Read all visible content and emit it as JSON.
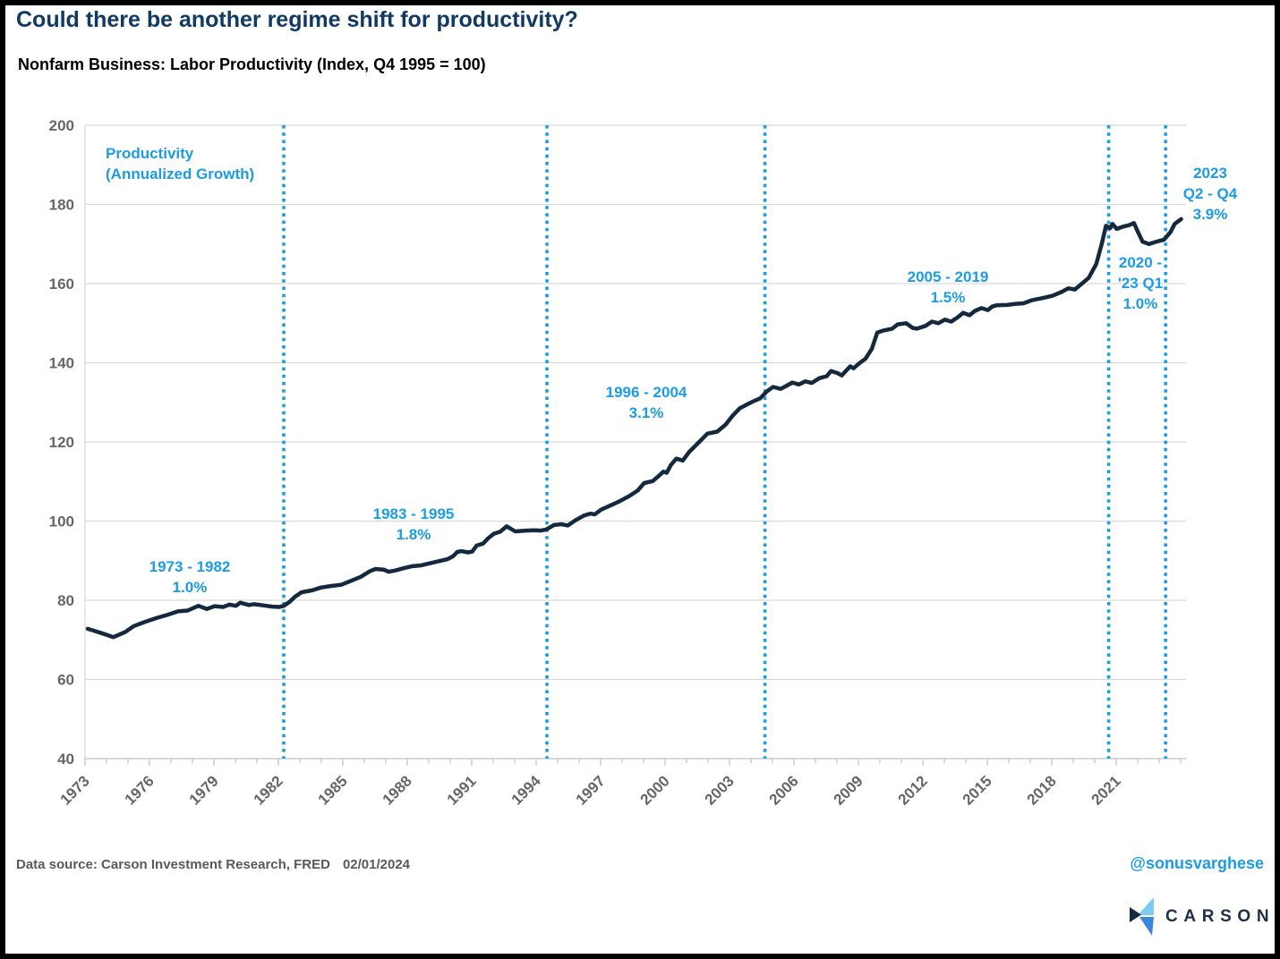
{
  "header": {
    "title": "Could there be another regime shift for productivity?",
    "subtitle": "Nonfarm Business: Labor Productivity (Index, Q4 1995 = 100)"
  },
  "annotations": {
    "legend": {
      "line1": "Productivity",
      "line2": "(Annualized Growth)"
    },
    "r1": {
      "line1": "1973 - 1982",
      "line2": "1.0%"
    },
    "r2": {
      "line1": "1983 - 1995",
      "line2": "1.8%"
    },
    "r3": {
      "line1": "1996 - 2004",
      "line2": "3.1%"
    },
    "r4": {
      "line1": "2005 - 2019",
      "line2": "1.5%"
    },
    "r5": {
      "line1": "2020 -",
      "line2": "'23 Q1",
      "line3": "1.0%"
    },
    "r6": {
      "line1": "2023",
      "line2": "Q2 - Q4",
      "line3": "3.9%"
    }
  },
  "footer": {
    "source": "Data source: Carson Investment Research, FRED",
    "date": "02/01/2024",
    "handle": "@sonusvarghese",
    "logo_text": "CARSON"
  },
  "colors": {
    "line": "#15293e",
    "accent_blue": "#1b9ce4",
    "grid": "#d9d9d9",
    "axis": "#bfbfbf",
    "tick_label": "#666666",
    "logo_light": "#7dcbf2",
    "logo_mid": "#3a87d7",
    "logo_dark": "#16293f"
  },
  "chart_data": {
    "type": "line",
    "title": "Nonfarm Business: Labor Productivity (Index, Q4 1995 = 100)",
    "xlabel": "",
    "ylabel": "",
    "ylim": [
      40,
      200
    ],
    "xlim": [
      1972.9,
      2024.3
    ],
    "grid": "horizontal",
    "legend_position": "none",
    "yticks": [
      40,
      60,
      80,
      100,
      120,
      140,
      160,
      180,
      200
    ],
    "xticks_labeled": [
      1973,
      1976,
      1979,
      1982,
      1985,
      1988,
      1991,
      1994,
      1997,
      2000,
      2003,
      2006,
      2009,
      2012,
      2015,
      2018,
      2021
    ],
    "xticks_minor_range": [
      1973,
      2024
    ],
    "dotted_lines_years": [
      1982.25,
      1994.5,
      2004.65,
      2020.65,
      2023.3
    ],
    "regimes": [
      {
        "period": "1973 - 1982",
        "annualized_growth": "1.0%"
      },
      {
        "period": "1983 - 1995",
        "annualized_growth": "1.8%"
      },
      {
        "period": "1996 - 2004",
        "annualized_growth": "3.1%"
      },
      {
        "period": "2005 - 2019",
        "annualized_growth": "1.5%"
      },
      {
        "period": "2020 - '23 Q1",
        "annualized_growth": "1.0%"
      },
      {
        "period": "2023 Q2 - Q4",
        "annualized_growth": "3.9%"
      }
    ],
    "series": [
      {
        "name": "Labor Productivity (Index, Q4 1995 = 100)",
        "points": [
          [
            1973.0,
            72.8
          ],
          [
            1973.3,
            72.3
          ],
          [
            1973.7,
            71.6
          ],
          [
            1974.2,
            70.7
          ],
          [
            1974.75,
            72.0
          ],
          [
            1975.15,
            73.5
          ],
          [
            1975.7,
            74.6
          ],
          [
            1976.2,
            75.5
          ],
          [
            1976.7,
            76.3
          ],
          [
            1977.2,
            77.2
          ],
          [
            1977.65,
            77.4
          ],
          [
            1978.15,
            78.6
          ],
          [
            1978.55,
            77.8
          ],
          [
            1978.9,
            78.5
          ],
          [
            1979.3,
            78.3
          ],
          [
            1979.6,
            78.9
          ],
          [
            1979.9,
            78.6
          ],
          [
            1980.1,
            79.4
          ],
          [
            1980.5,
            78.8
          ],
          [
            1980.75,
            79.0
          ],
          [
            1981.2,
            78.7
          ],
          [
            1981.6,
            78.4
          ],
          [
            1981.9,
            78.3
          ],
          [
            1982.1,
            78.5
          ],
          [
            1982.4,
            79.6
          ],
          [
            1982.65,
            80.9
          ],
          [
            1982.95,
            82.0
          ],
          [
            1983.45,
            82.5
          ],
          [
            1983.85,
            83.2
          ],
          [
            1984.3,
            83.6
          ],
          [
            1984.8,
            83.9
          ],
          [
            1985.2,
            84.8
          ],
          [
            1985.7,
            85.9
          ],
          [
            1986.15,
            87.4
          ],
          [
            1986.4,
            87.9
          ],
          [
            1986.8,
            87.7
          ],
          [
            1987.0,
            87.2
          ],
          [
            1987.3,
            87.5
          ],
          [
            1987.7,
            88.1
          ],
          [
            1988.1,
            88.6
          ],
          [
            1988.5,
            88.8
          ],
          [
            1988.9,
            89.3
          ],
          [
            1989.3,
            89.8
          ],
          [
            1989.75,
            90.4
          ],
          [
            1990.0,
            91.1
          ],
          [
            1990.2,
            92.2
          ],
          [
            1990.4,
            92.4
          ],
          [
            1990.7,
            92.1
          ],
          [
            1990.9,
            92.3
          ],
          [
            1991.1,
            93.8
          ],
          [
            1991.4,
            94.3
          ],
          [
            1991.65,
            95.7
          ],
          [
            1991.9,
            96.8
          ],
          [
            1992.2,
            97.3
          ],
          [
            1992.5,
            98.7
          ],
          [
            1992.9,
            97.4
          ],
          [
            1993.4,
            97.6
          ],
          [
            1993.8,
            97.7
          ],
          [
            1994.1,
            97.6
          ],
          [
            1994.35,
            97.9
          ],
          [
            1994.7,
            99.0
          ],
          [
            1995.05,
            99.2
          ],
          [
            1995.35,
            98.9
          ],
          [
            1995.7,
            100.2
          ],
          [
            1996.1,
            101.4
          ],
          [
            1996.4,
            101.9
          ],
          [
            1996.6,
            101.7
          ],
          [
            1996.9,
            102.9
          ],
          [
            1997.35,
            104.0
          ],
          [
            1997.75,
            105.0
          ],
          [
            1998.2,
            106.3
          ],
          [
            1998.6,
            107.7
          ],
          [
            1998.9,
            109.6
          ],
          [
            1999.3,
            110.1
          ],
          [
            1999.6,
            111.5
          ],
          [
            1999.8,
            112.5
          ],
          [
            1999.95,
            112.2
          ],
          [
            2000.15,
            114.2
          ],
          [
            2000.4,
            115.8
          ],
          [
            2000.7,
            115.3
          ],
          [
            2001.0,
            117.5
          ],
          [
            2001.45,
            119.9
          ],
          [
            2001.85,
            122.1
          ],
          [
            2002.3,
            122.6
          ],
          [
            2002.7,
            124.4
          ],
          [
            2003.0,
            126.5
          ],
          [
            2003.35,
            128.5
          ],
          [
            2003.7,
            129.5
          ],
          [
            2004.0,
            130.3
          ],
          [
            2004.3,
            131.0
          ],
          [
            2004.6,
            132.7
          ],
          [
            2004.9,
            133.9
          ],
          [
            2005.25,
            133.4
          ],
          [
            2005.5,
            134.1
          ],
          [
            2005.8,
            135.0
          ],
          [
            2006.1,
            134.5
          ],
          [
            2006.4,
            135.3
          ],
          [
            2006.7,
            134.9
          ],
          [
            2007.05,
            136.1
          ],
          [
            2007.4,
            136.6
          ],
          [
            2007.6,
            137.9
          ],
          [
            2007.9,
            137.4
          ],
          [
            2008.1,
            136.8
          ],
          [
            2008.3,
            138.0
          ],
          [
            2008.5,
            139.1
          ],
          [
            2008.65,
            138.6
          ],
          [
            2008.9,
            139.8
          ],
          [
            2009.2,
            141.0
          ],
          [
            2009.5,
            143.5
          ],
          [
            2009.75,
            147.6
          ],
          [
            2010.0,
            148.1
          ],
          [
            2010.45,
            148.6
          ],
          [
            2010.7,
            149.7
          ],
          [
            2011.1,
            150.0
          ],
          [
            2011.4,
            148.8
          ],
          [
            2011.6,
            148.6
          ],
          [
            2012.0,
            149.3
          ],
          [
            2012.3,
            150.4
          ],
          [
            2012.6,
            150.0
          ],
          [
            2012.9,
            150.9
          ],
          [
            2013.2,
            150.4
          ],
          [
            2013.5,
            151.5
          ],
          [
            2013.75,
            152.6
          ],
          [
            2014.05,
            152.0
          ],
          [
            2014.3,
            153.1
          ],
          [
            2014.6,
            153.8
          ],
          [
            2014.9,
            153.3
          ],
          [
            2015.1,
            154.2
          ],
          [
            2015.3,
            154.5
          ],
          [
            2015.8,
            154.6
          ],
          [
            2016.2,
            154.9
          ],
          [
            2016.55,
            155.0
          ],
          [
            2016.95,
            155.8
          ],
          [
            2017.4,
            156.3
          ],
          [
            2017.9,
            156.9
          ],
          [
            2018.3,
            157.8
          ],
          [
            2018.65,
            158.8
          ],
          [
            2018.95,
            158.5
          ],
          [
            2019.3,
            160.1
          ],
          [
            2019.6,
            161.5
          ],
          [
            2019.95,
            165.0
          ],
          [
            2020.2,
            170.0
          ],
          [
            2020.4,
            174.6
          ],
          [
            2020.6,
            174.0
          ],
          [
            2020.7,
            175.1
          ],
          [
            2020.9,
            173.8
          ],
          [
            2021.2,
            174.4
          ],
          [
            2021.5,
            174.8
          ],
          [
            2021.7,
            175.3
          ],
          [
            2021.9,
            172.9
          ],
          [
            2022.1,
            170.6
          ],
          [
            2022.4,
            170.0
          ],
          [
            2022.7,
            170.5
          ],
          [
            2022.9,
            170.8
          ],
          [
            2023.1,
            171.1
          ],
          [
            2023.4,
            173.0
          ],
          [
            2023.6,
            175.1
          ],
          [
            2023.9,
            176.3
          ]
        ]
      }
    ]
  }
}
